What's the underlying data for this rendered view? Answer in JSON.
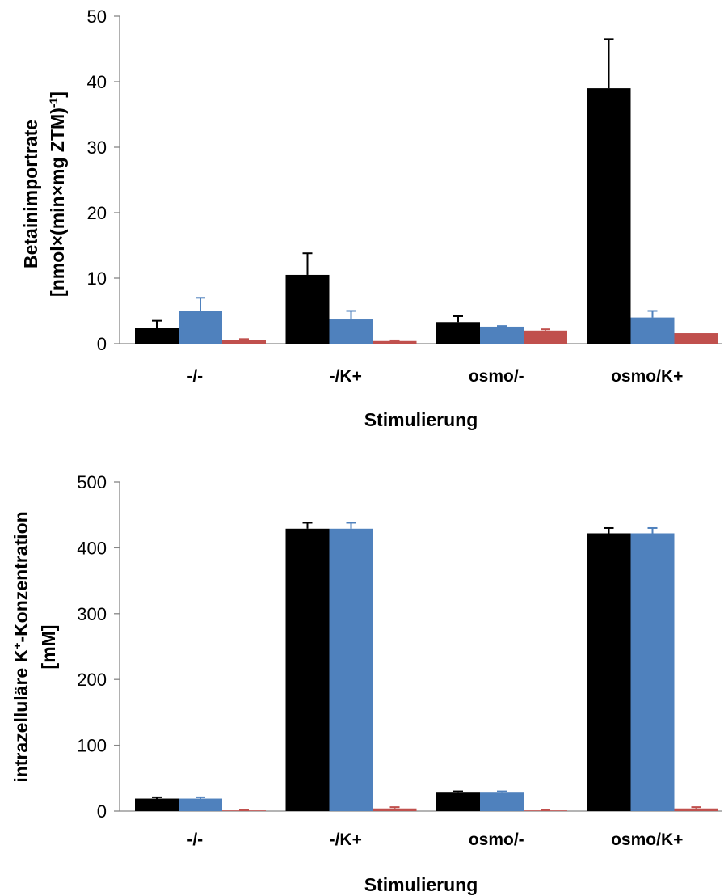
{
  "chart_data": [
    {
      "type": "bar",
      "categories": [
        "-/-",
        "-/K+",
        "osmo/-",
        "osmo/K+"
      ],
      "xlabel": "Stimulierung",
      "ylabel_line1": "Betainimportrate",
      "ylabel_line2_main": "[nmol×(min×mg ZTM)",
      "ylabel_line2_sup": "-1",
      "ylabel_line2_end": "]",
      "ylim": [
        0,
        50
      ],
      "yticks": [
        0,
        10,
        20,
        30,
        40,
        50
      ],
      "series": [
        {
          "color": "#000000",
          "values": [
            2.4,
            10.5,
            3.3,
            39.0
          ],
          "errors": [
            1.1,
            3.3,
            0.9,
            7.5
          ]
        },
        {
          "color": "#4F81BD",
          "values": [
            5.0,
            3.7,
            2.6,
            4.0
          ],
          "errors": [
            2.0,
            1.3,
            0.1,
            1.0
          ]
        },
        {
          "color": "#C0504D",
          "values": [
            0.5,
            0.4,
            2.0,
            1.6
          ],
          "errors": [
            0.2,
            0.1,
            0.2,
            0.0
          ]
        }
      ]
    },
    {
      "type": "bar",
      "categories": [
        "-/-",
        "-/K+",
        "osmo/-",
        "osmo/K+"
      ],
      "xlabel": "Stimulierung",
      "ylabel_line1_pre": "intrazelluläre K",
      "ylabel_line1_sup": "+",
      "ylabel_line1_post": "-Konzentration",
      "ylabel_line2": "[mM]",
      "ylim": [
        0,
        500
      ],
      "yticks": [
        0,
        100,
        200,
        300,
        400,
        500
      ],
      "series": [
        {
          "color": "#000000",
          "values": [
            19,
            429,
            28,
            422
          ],
          "errors": [
            2,
            9,
            2,
            8
          ]
        },
        {
          "color": "#4F81BD",
          "values": [
            19,
            429,
            28,
            422
          ],
          "errors": [
            2,
            9,
            2,
            8
          ]
        },
        {
          "color": "#C0504D",
          "values": [
            1,
            4,
            1,
            4
          ],
          "errors": [
            0.5,
            2,
            0.5,
            2
          ]
        }
      ]
    }
  ]
}
